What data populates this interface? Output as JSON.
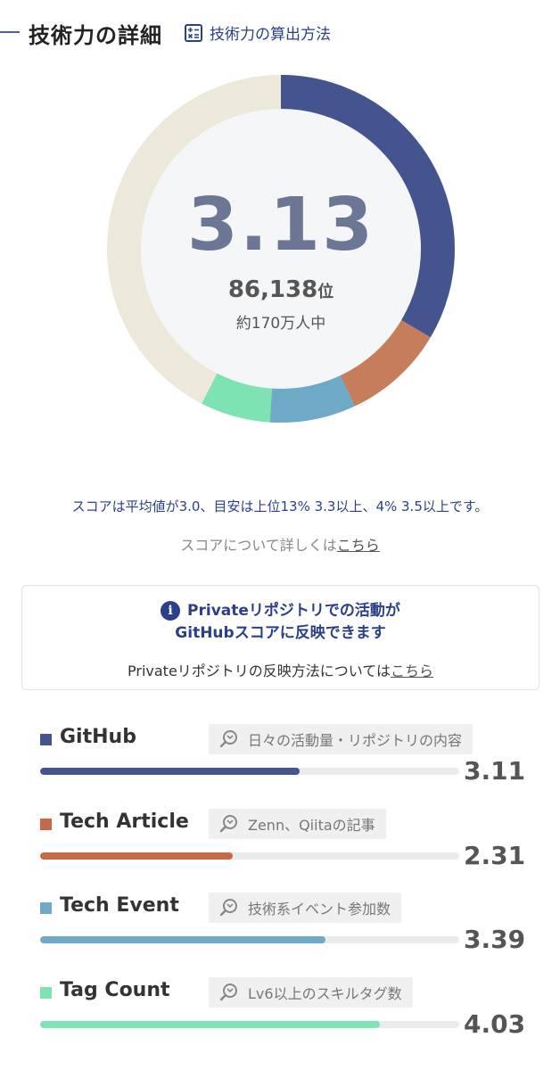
{
  "header": {
    "title": "技術力の詳細",
    "calc_link_label": "技術力の算出方法",
    "calc_icon": "calculator-icon"
  },
  "summary": {
    "score": "3.13",
    "rank": "86,138",
    "rank_unit": "位",
    "users": "約170万人中"
  },
  "donut": {
    "background_color": "#ece9da",
    "segments": [
      {
        "name": "GitHub",
        "fraction": 0.335,
        "color": "#44548f"
      },
      {
        "name": "Tech Article",
        "fraction": 0.095,
        "color": "#c57d5c"
      },
      {
        "name": "Tech Event",
        "fraction": 0.08,
        "color": "#6eaac7"
      },
      {
        "name": "Tag Count",
        "fraction": 0.065,
        "color": "#7de3b2"
      }
    ]
  },
  "note": {
    "text": "スコアは平均値が3.0、目安は上位13% 3.3以上、4% 3.5以上です。",
    "more_prefix": "スコアについて詳しくは",
    "more_link": "こちら"
  },
  "private_box": {
    "icon": "info-icon",
    "title_line1": "Privateリポジトリでの活動が",
    "title_line2": "GitHubスコアに反映できます",
    "sub_prefix": "Privateリポジトリの反映方法については",
    "sub_link": "こちら"
  },
  "categories": [
    {
      "name": "GitHub",
      "tag": "日々の活動量・リポジトリの内容",
      "value": "3.11",
      "fill": 0.62,
      "color": "#44548f",
      "icon": "search-detail-icon"
    },
    {
      "name": "Tech Article",
      "tag": "Zenn、Qiitaの記事",
      "value": "2.31",
      "fill": 0.46,
      "color": "#c5694a",
      "icon": "search-detail-icon"
    },
    {
      "name": "Tech Event",
      "tag": "技術系イベント参加数",
      "value": "3.39",
      "fill": 0.68,
      "color": "#6eaac7",
      "icon": "search-detail-icon"
    },
    {
      "name": "Tag Count",
      "tag": "Lv6以上のスキルタグ数",
      "value": "4.03",
      "fill": 0.81,
      "color": "#7de3b2",
      "icon": "search-detail-icon"
    }
  ]
}
